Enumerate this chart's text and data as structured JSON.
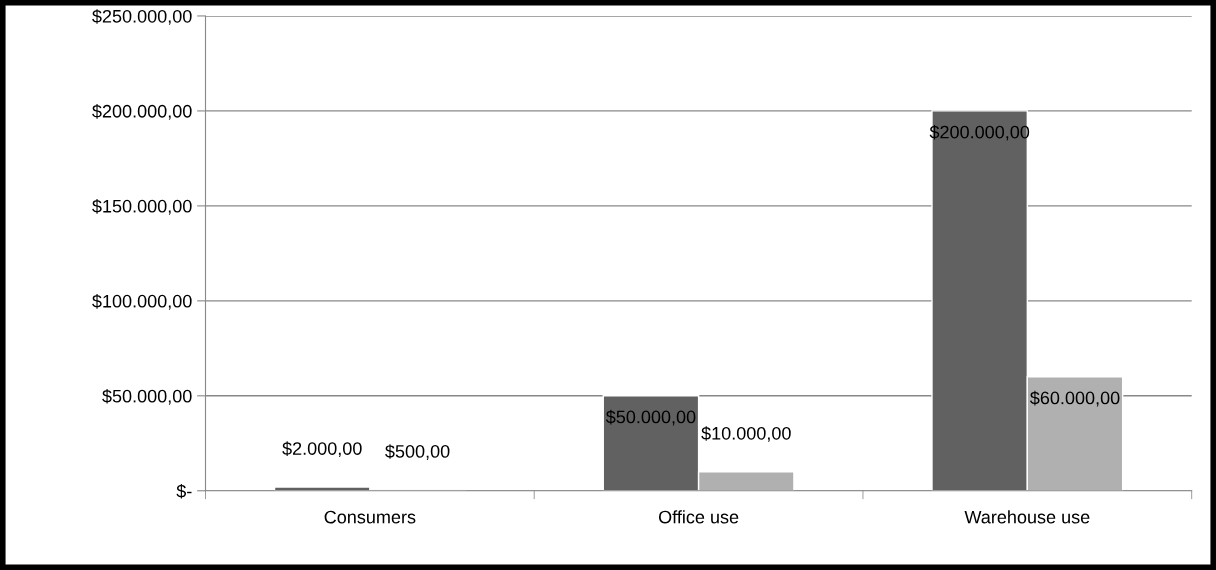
{
  "chart_data": {
    "type": "bar",
    "categories": [
      "Consumers",
      "Office use",
      "Warehouse use"
    ],
    "series": [
      {
        "color": "#616161",
        "values": [
          2000,
          50000,
          200000
        ],
        "value_labels": [
          "$2.000,00",
          "$50.000,00",
          "$200.000,00"
        ]
      },
      {
        "color": "#b0b0b0",
        "values": [
          500,
          10000,
          60000
        ],
        "value_labels": [
          "$500,00",
          "$10.000,00",
          "$60.000,00"
        ]
      }
    ],
    "ylim": [
      0,
      250000
    ],
    "yticks": [
      {
        "value": 0,
        "label": "$-"
      },
      {
        "value": 50000,
        "label": "$50.000,00"
      },
      {
        "value": 100000,
        "label": "$100.000,00"
      },
      {
        "value": 150000,
        "label": "$150.000,00"
      },
      {
        "value": 200000,
        "label": "$200.000,00"
      },
      {
        "value": 250000,
        "label": "$250.000,00"
      }
    ],
    "grid": "y",
    "legend": false
  }
}
